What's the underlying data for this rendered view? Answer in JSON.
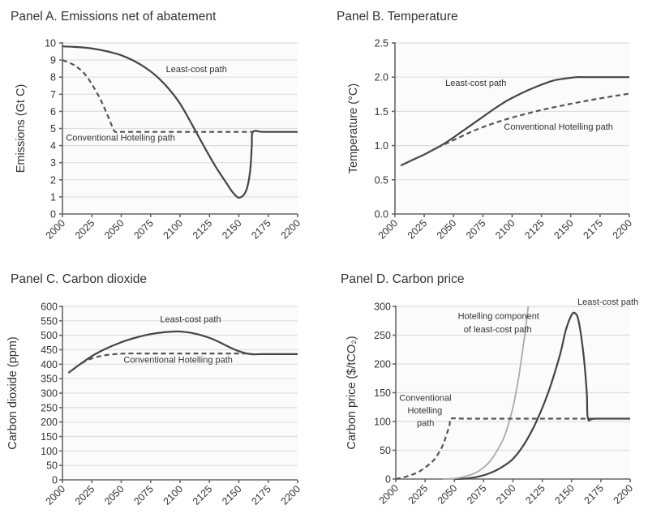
{
  "chart_data": [
    {
      "id": "A",
      "type": "line",
      "title": "Panel A. Emissions net of abatement",
      "xlabel": "",
      "ylabel": "Emissions (Gt C)",
      "xlim": [
        2000,
        2200
      ],
      "ylim": [
        0,
        10
      ],
      "xticks": [
        2000,
        2025,
        2050,
        2075,
        2100,
        2125,
        2150,
        2175,
        2200
      ],
      "yticks": [
        0,
        1,
        2,
        3,
        4,
        5,
        6,
        7,
        8,
        9,
        10
      ],
      "ytick_labels": [
        "0",
        "1",
        "2",
        "3",
        "4",
        "5",
        "6",
        "7",
        "8",
        "9",
        "10"
      ],
      "grid": true,
      "series": [
        {
          "name": "Least-cost path",
          "style": "solid",
          "x": [
            2000,
            2010,
            2020,
            2030,
            2040,
            2050,
            2060,
            2070,
            2080,
            2090,
            2100,
            2110,
            2120,
            2130,
            2140,
            2145,
            2150,
            2155,
            2158,
            2160,
            2161,
            2162,
            2170,
            2180,
            2190,
            2200
          ],
          "y": [
            9.8,
            9.77,
            9.72,
            9.62,
            9.48,
            9.28,
            8.98,
            8.58,
            8.05,
            7.35,
            6.45,
            5.25,
            4.0,
            2.8,
            1.75,
            1.25,
            0.95,
            1.2,
            1.8,
            2.8,
            4.0,
            4.8,
            4.8,
            4.8,
            4.8,
            4.8
          ]
        },
        {
          "name": "Conventional Hotelling path",
          "style": "dashed",
          "x": [
            2000,
            2010,
            2020,
            2030,
            2035,
            2040,
            2043,
            2045,
            2050,
            2075,
            2100,
            2125,
            2150,
            2162
          ],
          "y": [
            9.0,
            8.7,
            8.1,
            7.0,
            6.3,
            5.5,
            5.0,
            4.8,
            4.8,
            4.8,
            4.8,
            4.8,
            4.8,
            4.8
          ]
        }
      ],
      "annotations": [
        {
          "text": "Least-cost path",
          "x": 2088,
          "y": 8.3
        },
        {
          "text": "Conventional Hotelling path",
          "x": 2003,
          "y": 4.3
        }
      ]
    },
    {
      "id": "B",
      "type": "line",
      "title": "Panel B. Temperature",
      "xlabel": "",
      "ylabel": "Temperature (°C)",
      "xlim": [
        2000,
        2200
      ],
      "ylim": [
        0,
        2.5
      ],
      "xticks": [
        2000,
        2025,
        2050,
        2075,
        2100,
        2125,
        2150,
        2175,
        2200
      ],
      "yticks": [
        0,
        0.5,
        1.0,
        1.5,
        2.0,
        2.5
      ],
      "ytick_labels": [
        "0.0",
        "0.5",
        "1.0",
        "1.5",
        "2.0",
        "2.5"
      ],
      "grid": true,
      "series": [
        {
          "name": "Least-cost path",
          "style": "solid",
          "x": [
            2005,
            2015,
            2025,
            2035,
            2045,
            2055,
            2065,
            2075,
            2085,
            2095,
            2105,
            2115,
            2125,
            2135,
            2145,
            2155,
            2165,
            2200
          ],
          "y": [
            0.71,
            0.79,
            0.87,
            0.96,
            1.06,
            1.18,
            1.3,
            1.42,
            1.54,
            1.65,
            1.74,
            1.82,
            1.89,
            1.95,
            1.98,
            2.0,
            2.0,
            2.0
          ]
        },
        {
          "name": "Conventional Hotelling path",
          "style": "dashed",
          "x": [
            2005,
            2015,
            2025,
            2035,
            2045,
            2055,
            2065,
            2075,
            2085,
            2100,
            2125,
            2150,
            2175,
            2200
          ],
          "y": [
            0.71,
            0.79,
            0.87,
            0.96,
            1.04,
            1.12,
            1.2,
            1.27,
            1.33,
            1.41,
            1.52,
            1.61,
            1.69,
            1.76
          ]
        }
      ],
      "annotations": [
        {
          "text": "Least-cost path",
          "x": 2043,
          "y": 1.87
        },
        {
          "text": "Conventional Hotelling path",
          "x": 2093,
          "y": 1.23
        }
      ]
    },
    {
      "id": "C",
      "type": "line",
      "title": "Panel C. Carbon dioxide",
      "xlabel": "",
      "ylabel": "Carbon dioxide (ppm)",
      "xlim": [
        2000,
        2200
      ],
      "ylim": [
        0,
        600
      ],
      "xticks": [
        2000,
        2025,
        2050,
        2075,
        2100,
        2125,
        2150,
        2175,
        2200
      ],
      "yticks": [
        0,
        50,
        100,
        150,
        200,
        250,
        300,
        350,
        400,
        450,
        500,
        550,
        600
      ],
      "ytick_labels": [
        "0",
        "50",
        "100",
        "150",
        "200",
        "250",
        "300",
        "350",
        "400",
        "450",
        "500",
        "550",
        "600"
      ],
      "grid": true,
      "series": [
        {
          "name": "Least-cost path",
          "style": "solid",
          "x": [
            2005,
            2015,
            2025,
            2035,
            2045,
            2055,
            2065,
            2075,
            2085,
            2095,
            2100,
            2110,
            2120,
            2130,
            2140,
            2150,
            2160,
            2170,
            2200
          ],
          "y": [
            370,
            400,
            428,
            450,
            468,
            483,
            495,
            504,
            510,
            513,
            513,
            508,
            498,
            483,
            463,
            445,
            435,
            435,
            435
          ]
        },
        {
          "name": "Conventional Hotelling path",
          "style": "dashed",
          "x": [
            2005,
            2015,
            2025,
            2035,
            2045,
            2055,
            2075,
            2100,
            2125,
            2150,
            2160
          ],
          "y": [
            370,
            400,
            420,
            430,
            435,
            437,
            437,
            437,
            437,
            437,
            437
          ]
        }
      ],
      "annotations": [
        {
          "text": "Least-cost path",
          "x": 2083,
          "y": 545
        },
        {
          "text": "Conventional Hotelling path",
          "x": 2052,
          "y": 405
        }
      ]
    },
    {
      "id": "D",
      "type": "line",
      "title": "Panel D. Carbon price",
      "xlabel": "",
      "ylabel": "Carbon price ($/tCO₂)",
      "xlim": [
        2000,
        2200
      ],
      "ylim": [
        0,
        300
      ],
      "xticks": [
        2000,
        2025,
        2050,
        2075,
        2100,
        2125,
        2150,
        2175,
        2200
      ],
      "yticks": [
        0,
        50,
        100,
        150,
        200,
        250,
        300
      ],
      "ytick_labels": [
        "0",
        "50",
        "100",
        "150",
        "200",
        "250",
        "300"
      ],
      "grid": true,
      "series": [
        {
          "name": "Least-cost path",
          "style": "solid",
          "x": [
            2050,
            2060,
            2070,
            2080,
            2090,
            2100,
            2110,
            2120,
            2130,
            2140,
            2145,
            2150,
            2153,
            2156,
            2160,
            2163,
            2164,
            2170,
            2200
          ],
          "y": [
            0,
            1,
            4,
            10,
            20,
            35,
            62,
            100,
            150,
            215,
            258,
            285,
            288,
            275,
            220,
            150,
            105,
            105,
            105
          ]
        },
        {
          "name": "Hotelling component of least-cost path",
          "style": "light",
          "x": [
            2040,
            2050,
            2060,
            2070,
            2080,
            2090,
            2095,
            2100,
            2105,
            2110,
            2113
          ],
          "y": [
            0,
            1,
            5,
            13,
            30,
            62,
            88,
            125,
            178,
            250,
            300
          ]
        },
        {
          "name": "Conventional Hotelling path",
          "style": "dashed",
          "x": [
            2000,
            2010,
            2020,
            2030,
            2035,
            2040,
            2043,
            2046,
            2047,
            2060,
            2100,
            2150,
            2200
          ],
          "y": [
            0,
            5,
            13,
            28,
            40,
            58,
            75,
            95,
            105,
            105,
            105,
            105,
            105
          ]
        }
      ],
      "annotations": [
        {
          "text": "Least-cost path",
          "x": 2155,
          "y": 303
        },
        {
          "text": "Hotelling component",
          "x": 2053,
          "y": 278
        },
        {
          "text": "of least-cost path",
          "x": 2058,
          "y": 255
        },
        {
          "text": "Conventional",
          "x": 2003,
          "y": 136
        },
        {
          "text": "Hotelling",
          "x": 2010,
          "y": 114
        },
        {
          "text": "path",
          "x": 2018,
          "y": 92
        }
      ]
    }
  ]
}
